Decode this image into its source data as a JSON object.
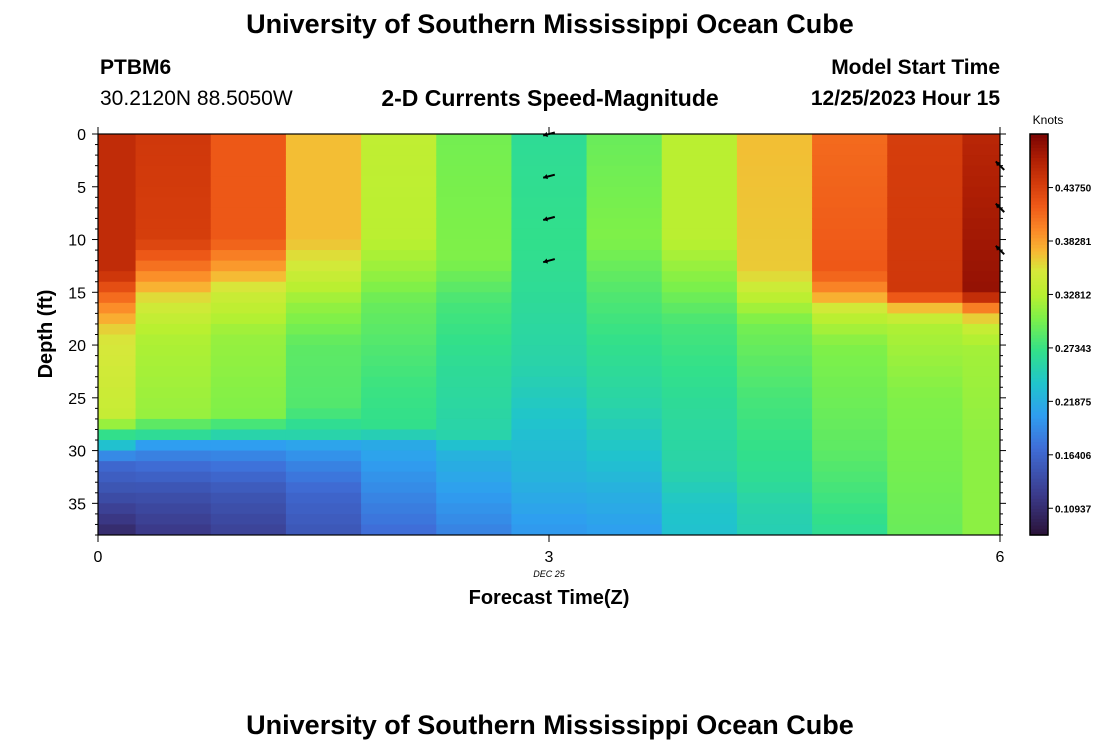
{
  "header": {
    "title": "University of Southern Mississippi Ocean Cube",
    "station": "PTBM6",
    "coords": "30.2120N  88.5050W",
    "subtitle": "2-D Currents Speed-Magnitude",
    "start_label": "Model Start Time",
    "start_value": "12/25/2023 Hour 15",
    "footer_title": "University of Southern Mississippi Ocean Cube"
  },
  "colorbar": {
    "unit": "Knots",
    "tick_labels": [
      "0.10937",
      "0.16406",
      "0.21875",
      "0.27343",
      "0.32812",
      "0.38281",
      "0.43750"
    ],
    "tick_values": [
      0.10937,
      0.16406,
      0.21875,
      0.27343,
      0.32812,
      0.38281,
      0.4375
    ],
    "range": [
      0.082,
      0.4923
    ],
    "stops": [
      [
        0.0,
        "#2a1236"
      ],
      [
        0.1,
        "#3b3a8a"
      ],
      [
        0.22,
        "#3f6ed8"
      ],
      [
        0.3,
        "#2f9ef0"
      ],
      [
        0.38,
        "#20c4cc"
      ],
      [
        0.46,
        "#32e08a"
      ],
      [
        0.54,
        "#7cf04a"
      ],
      [
        0.6,
        "#b8f030"
      ],
      [
        0.66,
        "#d6e83a"
      ],
      [
        0.71,
        "#f8b633"
      ],
      [
        0.76,
        "#fb8a28"
      ],
      [
        0.82,
        "#ef5a18"
      ],
      [
        0.88,
        "#d23a0b"
      ],
      [
        0.94,
        "#ad1e04"
      ],
      [
        1.0,
        "#7a0403"
      ]
    ]
  },
  "chart_data": {
    "type": "heatmap",
    "xlabel": "Forecast Time(Z)",
    "ylabel": "Depth (ft)",
    "x_date_label": "DEC 25",
    "xlim": [
      0,
      6
    ],
    "ylim": [
      38,
      0
    ],
    "x_ticks": [
      0,
      3,
      6
    ],
    "y_ticks": [
      0,
      5,
      10,
      15,
      20,
      25,
      30,
      35
    ],
    "columns": [
      {
        "x": 0.0,
        "profile": [
          [
            0,
            0.455
          ],
          [
            13,
            0.455
          ],
          [
            16,
            0.4
          ],
          [
            19,
            0.355
          ],
          [
            26.5,
            0.34
          ],
          [
            27.5,
            0.315
          ],
          [
            28.5,
            0.27
          ],
          [
            29.5,
            0.235
          ],
          [
            31,
            0.17
          ],
          [
            34,
            0.145
          ],
          [
            38,
            0.105
          ]
        ]
      },
      {
        "x": 0.5,
        "profile": [
          [
            0,
            0.445
          ],
          [
            10,
            0.44
          ],
          [
            13,
            0.4
          ],
          [
            16,
            0.35
          ],
          [
            19,
            0.325
          ],
          [
            26.5,
            0.315
          ],
          [
            27.5,
            0.29
          ],
          [
            28.5,
            0.265
          ],
          [
            29.5,
            0.205
          ],
          [
            31,
            0.175
          ],
          [
            34,
            0.145
          ],
          [
            38,
            0.12
          ]
        ]
      },
      {
        "x": 1.0,
        "profile": [
          [
            0,
            0.42
          ],
          [
            10,
            0.42
          ],
          [
            13,
            0.38
          ],
          [
            15,
            0.345
          ],
          [
            19,
            0.315
          ],
          [
            26.5,
            0.305
          ],
          [
            27.5,
            0.28
          ],
          [
            28.5,
            0.255
          ],
          [
            29.5,
            0.205
          ],
          [
            31,
            0.18
          ],
          [
            34,
            0.15
          ],
          [
            38,
            0.13
          ]
        ]
      },
      {
        "x": 1.5,
        "profile": [
          [
            0,
            0.37
          ],
          [
            10,
            0.37
          ],
          [
            13,
            0.345
          ],
          [
            16,
            0.315
          ],
          [
            20,
            0.29
          ],
          [
            26,
            0.285
          ],
          [
            28.5,
            0.255
          ],
          [
            29.5,
            0.21
          ],
          [
            31,
            0.19
          ],
          [
            34,
            0.165
          ],
          [
            38,
            0.15
          ]
        ]
      },
      {
        "x": 2.0,
        "profile": [
          [
            0,
            0.335
          ],
          [
            10,
            0.33
          ],
          [
            13,
            0.315
          ],
          [
            16,
            0.295
          ],
          [
            24,
            0.275
          ],
          [
            27.5,
            0.27
          ],
          [
            28.5,
            0.25
          ],
          [
            29.5,
            0.215
          ],
          [
            32,
            0.2
          ],
          [
            38,
            0.17
          ]
        ]
      },
      {
        "x": 2.5,
        "profile": [
          [
            0,
            0.3
          ],
          [
            12,
            0.305
          ],
          [
            16,
            0.28
          ],
          [
            22,
            0.265
          ],
          [
            28.5,
            0.255
          ],
          [
            30,
            0.225
          ],
          [
            34,
            0.205
          ],
          [
            38,
            0.185
          ]
        ]
      },
      {
        "x": 3.0,
        "profile": [
          [
            0,
            0.265
          ],
          [
            10,
            0.27
          ],
          [
            15,
            0.265
          ],
          [
            22,
            0.255
          ],
          [
            28,
            0.235
          ],
          [
            32,
            0.225
          ],
          [
            38,
            0.2
          ]
        ]
      },
      {
        "x": 3.5,
        "profile": [
          [
            0,
            0.295
          ],
          [
            10,
            0.305
          ],
          [
            15,
            0.285
          ],
          [
            20,
            0.27
          ],
          [
            26,
            0.255
          ],
          [
            31,
            0.235
          ],
          [
            34,
            0.22
          ],
          [
            38,
            0.205
          ]
        ]
      },
      {
        "x": 4.0,
        "profile": [
          [
            0,
            0.33
          ],
          [
            10,
            0.33
          ],
          [
            15,
            0.3
          ],
          [
            18,
            0.28
          ],
          [
            25,
            0.265
          ],
          [
            32,
            0.255
          ],
          [
            35,
            0.24
          ],
          [
            38,
            0.235
          ]
        ]
      },
      {
        "x": 4.5,
        "profile": [
          [
            0,
            0.37
          ],
          [
            13,
            0.365
          ],
          [
            16,
            0.325
          ],
          [
            18,
            0.3
          ],
          [
            25,
            0.28
          ],
          [
            33,
            0.265
          ],
          [
            35,
            0.255
          ],
          [
            38,
            0.25
          ]
        ]
      },
      {
        "x": 5.0,
        "profile": [
          [
            0,
            0.41
          ],
          [
            13,
            0.42
          ],
          [
            15,
            0.39
          ],
          [
            17,
            0.335
          ],
          [
            20,
            0.305
          ],
          [
            30,
            0.29
          ],
          [
            35,
            0.275
          ],
          [
            38,
            0.265
          ]
        ]
      },
      {
        "x": 5.5,
        "profile": [
          [
            0,
            0.44
          ],
          [
            15,
            0.445
          ],
          [
            16.5,
            0.37
          ],
          [
            18,
            0.325
          ],
          [
            25,
            0.305
          ],
          [
            32,
            0.3
          ],
          [
            38,
            0.295
          ]
        ]
      },
      {
        "x": 6.0,
        "profile": [
          [
            0,
            0.46
          ],
          [
            15,
            0.48
          ],
          [
            16.5,
            0.4
          ],
          [
            18,
            0.345
          ],
          [
            20,
            0.32
          ],
          [
            30,
            0.31
          ],
          [
            38,
            0.31
          ]
        ]
      }
    ],
    "vectors": [
      {
        "x": 3,
        "depth": 0,
        "angle_deg": 195
      },
      {
        "x": 3,
        "depth": 4,
        "angle_deg": 195
      },
      {
        "x": 3,
        "depth": 8,
        "angle_deg": 195
      },
      {
        "x": 3,
        "depth": 12,
        "angle_deg": 195
      },
      {
        "x": 6,
        "depth": 3,
        "angle_deg": 135
      },
      {
        "x": 6,
        "depth": 7,
        "angle_deg": 135
      },
      {
        "x": 6,
        "depth": 11,
        "angle_deg": 135
      }
    ]
  }
}
